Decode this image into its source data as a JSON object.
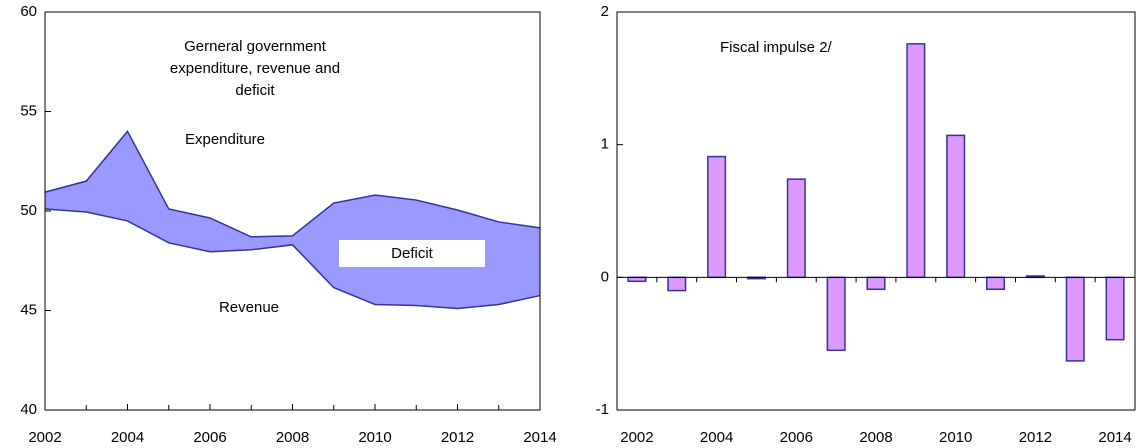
{
  "chart_data": [
    {
      "type": "area",
      "title": "Gerneral government expenditure, revenue and deficit",
      "x": [
        2002,
        2003,
        2004,
        2005,
        2006,
        2007,
        2008,
        2009,
        2010,
        2011,
        2012,
        2013,
        2014
      ],
      "series": [
        {
          "name": "Expenditure",
          "color": "#333399",
          "values": [
            50.95,
            51.5,
            54.0,
            50.1,
            49.65,
            48.7,
            48.75,
            50.4,
            50.8,
            50.55,
            50.05,
            49.45,
            49.15
          ]
        },
        {
          "name": "Revenue",
          "color": "#333399",
          "values": [
            50.1,
            49.95,
            49.5,
            48.4,
            47.95,
            48.05,
            48.3,
            46.15,
            45.3,
            45.25,
            45.1,
            45.3,
            45.75
          ]
        }
      ],
      "fill": "#9999ff",
      "annotations": [
        "Deficit"
      ],
      "xlim": [
        2002,
        2014
      ],
      "xticks": [
        2002,
        2004,
        2006,
        2008,
        2010,
        2012,
        2014
      ],
      "ylim": [
        40,
        60
      ],
      "yticks": [
        40,
        45,
        50,
        55,
        60
      ]
    },
    {
      "type": "bar",
      "title": "Fiscal impulse 2/",
      "categories": [
        "2002",
        null,
        "2004",
        null,
        "2006",
        null,
        "2008",
        null,
        "2010",
        null,
        "2012",
        null,
        "2014"
      ],
      "values": [
        -0.03,
        -0.1,
        0.91,
        -0.01,
        0.74,
        -0.55,
        -0.09,
        1.76,
        1.07,
        -0.09,
        0.01,
        -0.63,
        -0.47
      ],
      "color": "#dd99ff",
      "edge": "#333399",
      "ylim": [
        -1,
        2
      ],
      "yticks": [
        -1,
        0,
        1,
        2
      ]
    }
  ]
}
